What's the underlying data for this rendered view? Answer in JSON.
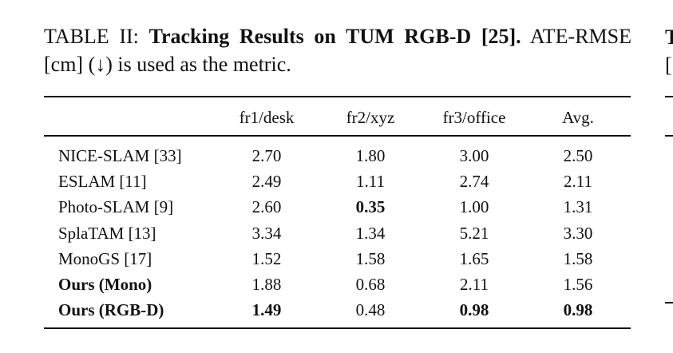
{
  "caption": {
    "label": "TABLE II:",
    "title": "Tracking Results on TUM RGB-D [25].",
    "text": "ATE-RMSE [cm] (↓) is used as the metric."
  },
  "table": {
    "header": [
      "",
      "fr1/desk",
      "fr2/xyz",
      "fr3/office",
      "Avg."
    ],
    "rows": [
      [
        "NICE-SLAM [33]",
        "2.70",
        "1.80",
        "3.00",
        "2.50"
      ],
      [
        "ESLAM [11]",
        "2.49",
        "1.11",
        "2.74",
        "2.11"
      ],
      [
        "Photo-SLAM [9]",
        "2.60",
        {
          "text": "0.35",
          "bold": true
        },
        "1.00",
        "1.31"
      ],
      [
        "SplaTAM [13]",
        "3.34",
        "1.34",
        "5.21",
        "3.30"
      ],
      [
        "MonoGS [17]",
        "1.52",
        "1.58",
        "1.65",
        "1.58"
      ],
      [
        {
          "text": "Ours (Mono)",
          "bold": true
        },
        "1.88",
        "0.68",
        "2.11",
        "1.56"
      ],
      [
        {
          "text": "Ours (RGB-D)",
          "bold": true
        },
        {
          "text": "1.49",
          "bold": true
        },
        "0.48",
        {
          "text": "0.98",
          "bold": true
        },
        {
          "text": "0.98",
          "bold": true
        }
      ]
    ]
  },
  "clipped_neighbor": {
    "lines": [
      "T",
      "["
    ]
  }
}
